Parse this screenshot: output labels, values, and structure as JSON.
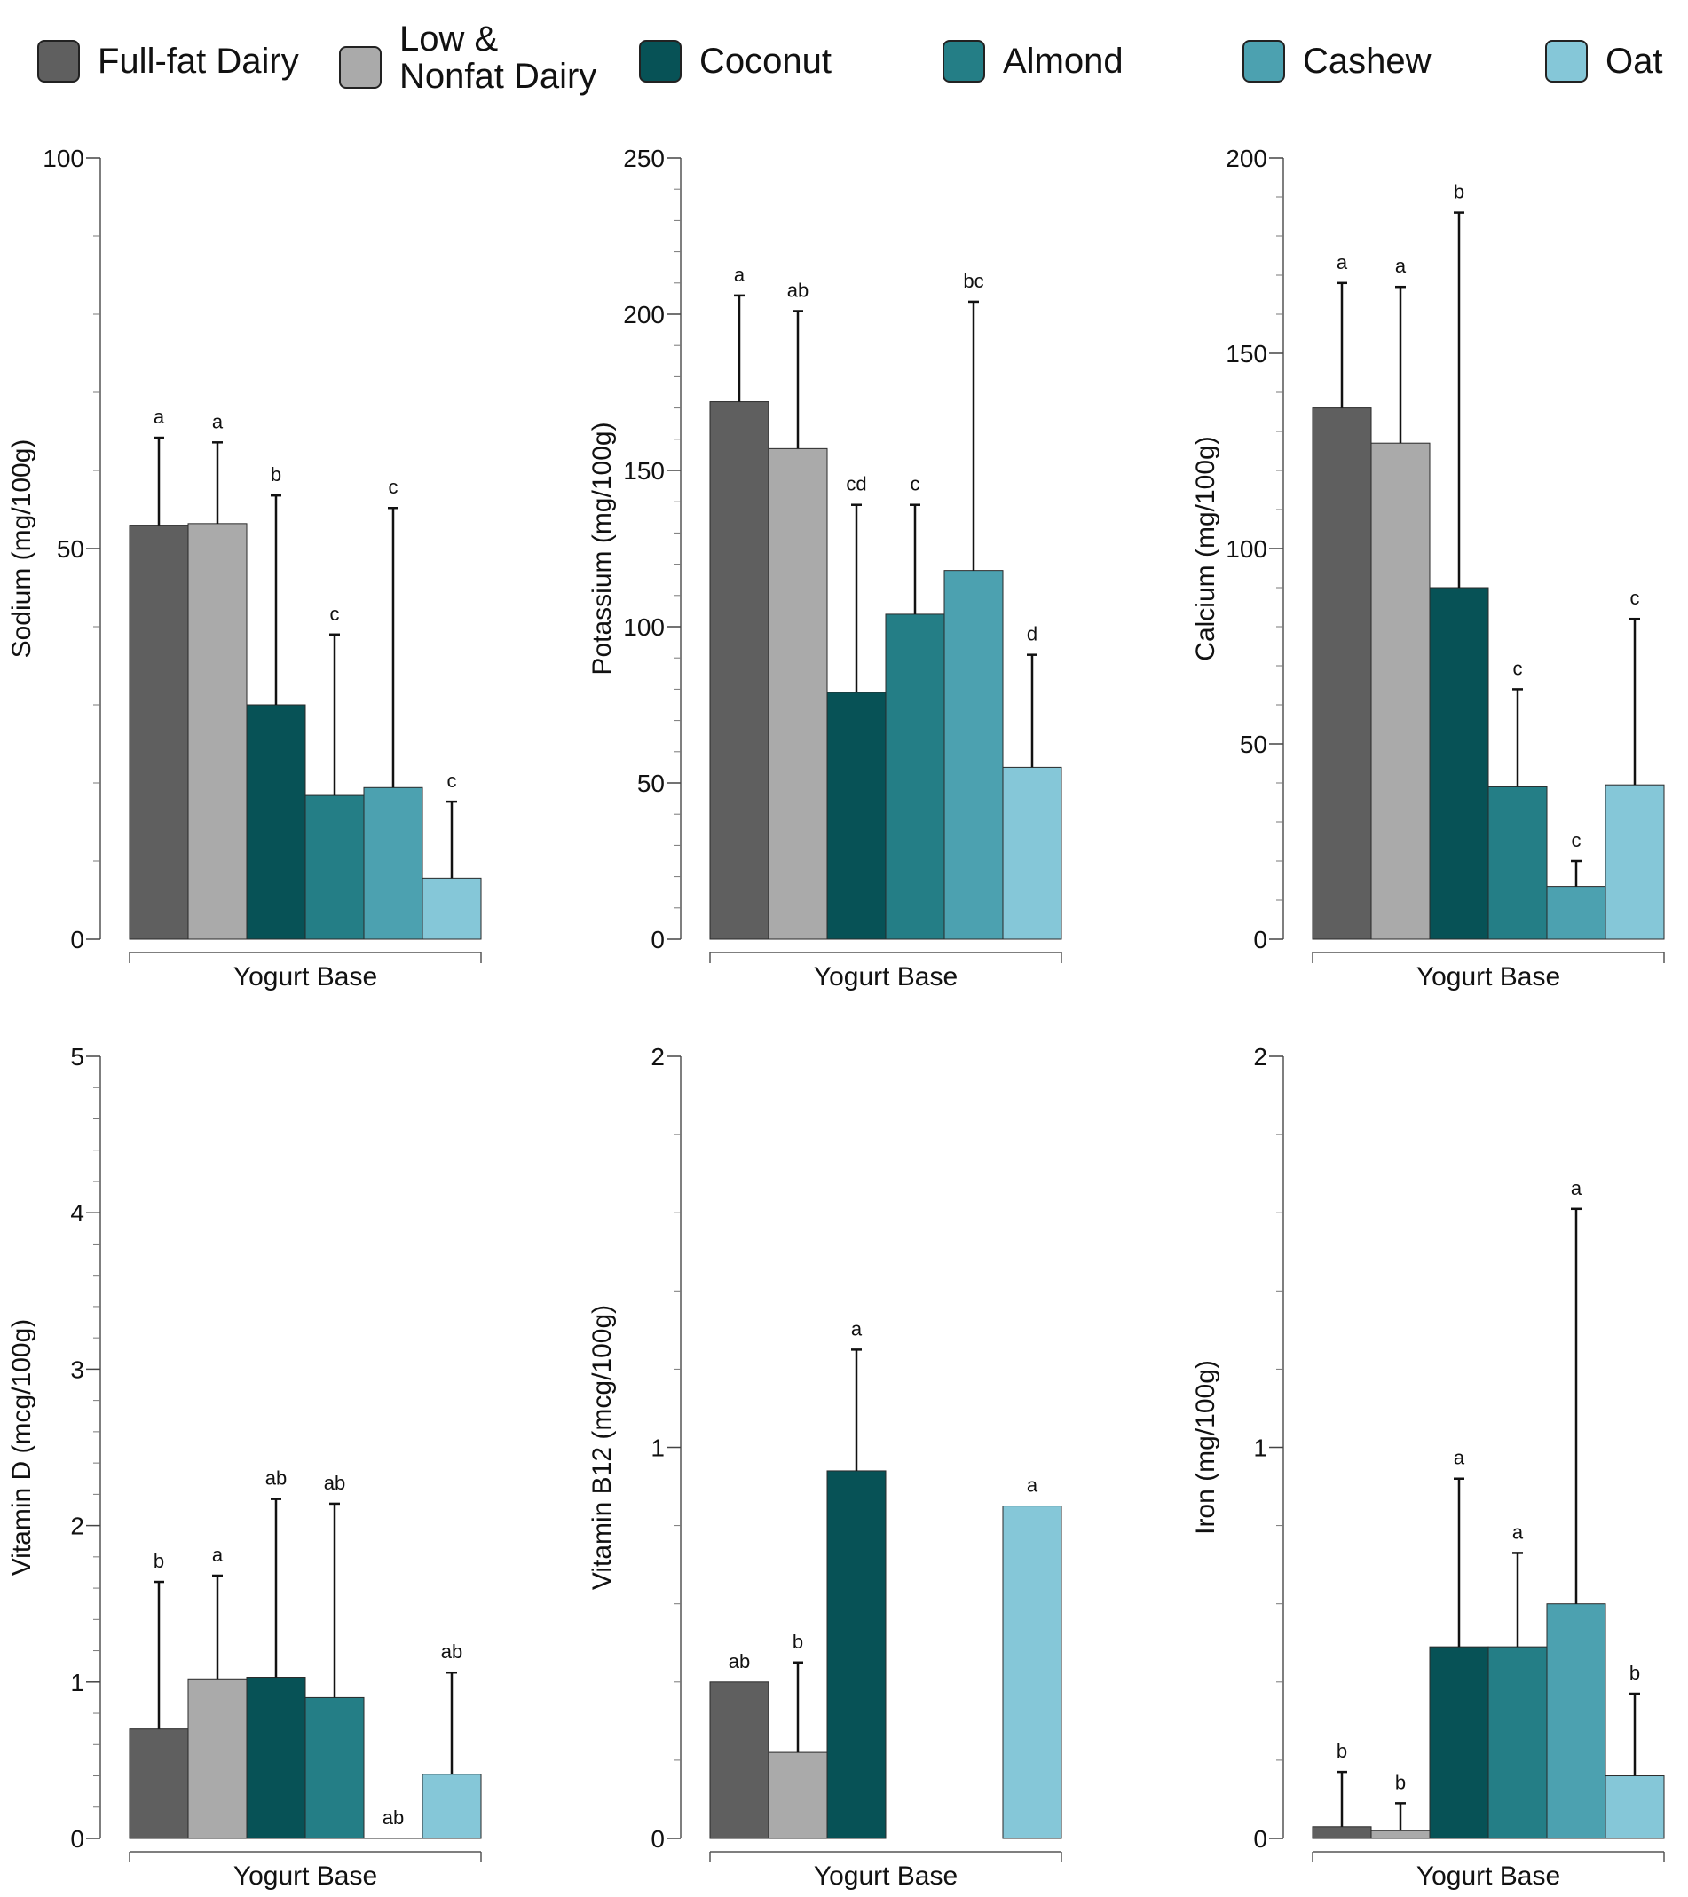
{
  "legend": [
    {
      "label": "Full-fat Dairy",
      "color": "#5f5f5f"
    },
    {
      "label": "Low & Nonfat Dairy",
      "color": "#aaaaaa"
    },
    {
      "label": "Coconut",
      "color": "#075256"
    },
    {
      "label": "Almond",
      "color": "#247e86"
    },
    {
      "label": "Cashew",
      "color": "#4ca1b0"
    },
    {
      "label": "Oat",
      "color": "#85c7d8"
    }
  ],
  "chart_data": [
    {
      "type": "bar",
      "ylabel": "Sodium (mg/100g)",
      "xlabel": "Yogurt Base",
      "ylim": [
        0,
        100
      ],
      "yticks": [
        0,
        50,
        100
      ],
      "minor_step": 10,
      "categories": [
        "Full-fat Dairy",
        "Low & Nonfat Dairy",
        "Coconut",
        "Almond",
        "Cashew",
        "Oat"
      ],
      "values": [
        53,
        53.2,
        30,
        18.4,
        19.4,
        7.8
      ],
      "error_upper": [
        64.2,
        63.6,
        56.8,
        39,
        55.2,
        17.6
      ],
      "sig_letters": [
        "a",
        "a",
        "b",
        "c",
        "c",
        "c"
      ]
    },
    {
      "type": "bar",
      "ylabel": "Potassium (mg/100g)",
      "xlabel": "Yogurt Base",
      "ylim": [
        0,
        250
      ],
      "yticks": [
        0,
        50,
        100,
        150,
        200,
        250
      ],
      "minor_step": 10,
      "categories": [
        "Full-fat Dairy",
        "Low & Nonfat Dairy",
        "Coconut",
        "Almond",
        "Cashew",
        "Oat"
      ],
      "values": [
        172,
        157,
        79,
        104,
        118,
        55
      ],
      "error_upper": [
        206,
        201,
        139,
        139,
        204,
        91
      ],
      "sig_letters": [
        "a",
        "ab",
        "cd",
        "c",
        "bc",
        "d"
      ]
    },
    {
      "type": "bar",
      "ylabel": "Calcium (mg/100g)",
      "xlabel": "Yogurt Base",
      "ylim": [
        0,
        200
      ],
      "yticks": [
        0,
        50,
        100,
        150,
        200
      ],
      "minor_step": 10,
      "categories": [
        "Full-fat Dairy",
        "Low & Nonfat Dairy",
        "Coconut",
        "Almond",
        "Cashew",
        "Oat"
      ],
      "values": [
        136,
        127,
        90,
        39,
        13.5,
        39.5
      ],
      "error_upper": [
        168,
        167,
        186,
        64,
        20,
        82
      ],
      "sig_letters": [
        "a",
        "a",
        "b",
        "c",
        "c",
        "c"
      ]
    },
    {
      "type": "bar",
      "ylabel": "Vitamin D (mcg/100g)",
      "xlabel": "Yogurt Base",
      "ylim": [
        0,
        5
      ],
      "yticks": [
        0,
        1,
        2,
        3,
        4,
        5
      ],
      "minor_step": 0.2,
      "categories": [
        "Full-fat Dairy",
        "Low & Nonfat Dairy",
        "Coconut",
        "Almond",
        "Cashew",
        "Oat"
      ],
      "values": [
        0.7,
        1.02,
        1.03,
        0.9,
        0,
        0.41
      ],
      "error_upper": [
        1.64,
        1.68,
        2.17,
        2.14,
        null,
        1.06
      ],
      "sig_letters": [
        "b",
        "a",
        "ab",
        "ab",
        "ab",
        "ab"
      ]
    },
    {
      "type": "bar",
      "ylabel": "Vitamin B12 (mcg/100g)",
      "xlabel": "Yogurt Base",
      "ylim": [
        0,
        2
      ],
      "yticks": [
        0,
        1,
        2
      ],
      "minor_step": 0.2,
      "categories": [
        "Full-fat Dairy",
        "Low & Nonfat Dairy",
        "Coconut",
        "Almond",
        "Cashew",
        "Oat"
      ],
      "values": [
        0.4,
        0.22,
        0.94,
        null,
        null,
        0.85
      ],
      "error_upper": [
        null,
        0.45,
        1.25,
        null,
        null,
        null
      ],
      "sig_letters": [
        "ab",
        "b",
        "a",
        "",
        "",
        "a"
      ]
    },
    {
      "type": "bar",
      "ylabel": "Iron (mg/100g)",
      "xlabel": "Yogurt Base",
      "ylim": [
        0,
        2
      ],
      "yticks": [
        0,
        1,
        2
      ],
      "minor_step": 0.2,
      "categories": [
        "Full-fat Dairy",
        "Low & Nonfat Dairy",
        "Coconut",
        "Almond",
        "Cashew",
        "Oat"
      ],
      "values": [
        0.03,
        0.02,
        0.49,
        0.49,
        0.6,
        0.16
      ],
      "error_upper": [
        0.17,
        0.09,
        0.92,
        0.73,
        1.61,
        0.37
      ],
      "sig_letters": [
        "b",
        "b",
        "a",
        "a",
        "a",
        "b"
      ]
    }
  ]
}
